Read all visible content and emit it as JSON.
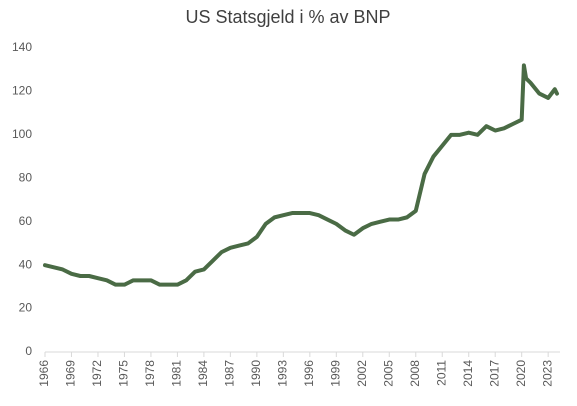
{
  "chart_data": {
    "type": "line",
    "title": "US Statsgjeld i % av BNP",
    "x": [
      1966,
      1967,
      1968,
      1969,
      1970,
      1971,
      1972,
      1973,
      1974,
      1975,
      1976,
      1977,
      1978,
      1979,
      1980,
      1981,
      1982,
      1983,
      1984,
      1985,
      1986,
      1987,
      1988,
      1989,
      1990,
      1991,
      1992,
      1993,
      1994,
      1995,
      1996,
      1997,
      1998,
      1999,
      2000,
      2001,
      2002,
      2003,
      2004,
      2005,
      2006,
      2007,
      2008,
      2009,
      2010,
      2011,
      2012,
      2013,
      2014,
      2015,
      2016,
      2017,
      2018,
      2019,
      2020,
      2020.25,
      2020.5,
      2021,
      2022,
      2023,
      2023.75,
      2024
    ],
    "series": [
      {
        "name": "US Statsgjeld i % av BNP",
        "color": "#4a6b45",
        "values": [
          40,
          39,
          38,
          36,
          35,
          35,
          34,
          33,
          31,
          31,
          33,
          33,
          33,
          31,
          31,
          31,
          33,
          37,
          38,
          42,
          46,
          48,
          49,
          50,
          53,
          59,
          62,
          63,
          64,
          64,
          64,
          63,
          61,
          59,
          56,
          54,
          57,
          59,
          60,
          61,
          61,
          62,
          65,
          82,
          90,
          95,
          100,
          100,
          101,
          100,
          104,
          102,
          103,
          105,
          107,
          132,
          126,
          124,
          119,
          117,
          121,
          119
        ]
      }
    ],
    "xlim": [
      1966,
      2024
    ],
    "xticks": [
      1966,
      1969,
      1972,
      1975,
      1978,
      1981,
      1984,
      1987,
      1990,
      1993,
      1996,
      1999,
      2002,
      2005,
      2008,
      2011,
      2014,
      2017,
      2020,
      2023
    ],
    "ylim": [
      0,
      140
    ],
    "yticks": [
      0,
      20,
      40,
      60,
      80,
      100,
      120,
      140
    ],
    "grid": false
  }
}
